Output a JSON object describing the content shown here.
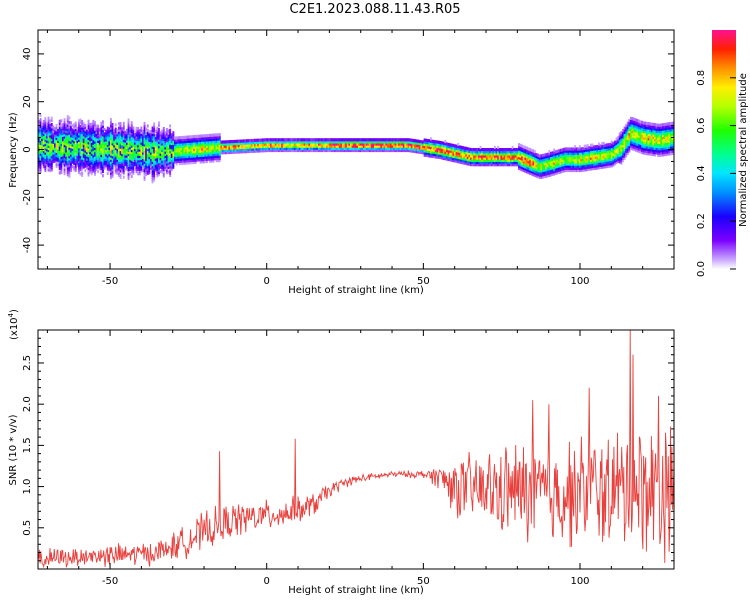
{
  "title": "C2E1.2023.088.11.43.R05",
  "chart_data": [
    {
      "type": "heatmap",
      "xlabel": "Height of straight line (km)",
      "ylabel": "Frequency (Hz)",
      "xlim": [
        -73,
        130
      ],
      "ylim": [
        -50,
        50
      ],
      "xticks": [
        -50,
        0,
        50,
        100
      ],
      "yticks": [
        -40,
        -20,
        0,
        20,
        40
      ],
      "colorbar": {
        "label": "Normalized spectral amplitude",
        "range": [
          0,
          1
        ],
        "ticks": [
          "0.0",
          "0.2",
          "0.4",
          "0.6",
          "0.8"
        ]
      },
      "ridge": {
        "x": [
          -73,
          -60,
          -45,
          -35,
          -25,
          -15,
          0,
          10,
          25,
          45,
          55,
          65,
          75,
          80,
          87,
          90,
          95,
          100,
          105,
          110,
          113,
          116,
          120,
          125,
          130
        ],
        "freq": [
          2,
          1,
          0,
          -1,
          0,
          1,
          2,
          2,
          2,
          2,
          0,
          -3,
          -3,
          -3,
          -7,
          -6,
          -4,
          -4,
          -3,
          -2,
          1,
          7,
          5,
          4,
          5
        ]
      }
    },
    {
      "type": "line",
      "xlabel": "Height of straight line (km)",
      "ylabel": "SNR (10 * v/v)",
      "scale_label": "(x10",
      "scale_exp": "4",
      "scale_close": ")",
      "xlim": [
        -73,
        130
      ],
      "ylim": [
        0,
        2.9
      ],
      "xticks": [
        -50,
        0,
        50,
        100
      ],
      "yticks": [
        0.5,
        1.0,
        1.5,
        2.0,
        2.5
      ],
      "series_color": "#e8403c",
      "profile": {
        "x": [
          -73,
          -60,
          -45,
          -35,
          -28,
          -20,
          -10,
          0,
          10,
          15,
          20,
          25,
          30,
          40,
          50,
          55,
          60,
          70,
          80,
          90,
          100,
          110,
          120,
          130
        ],
        "baseline": [
          0.12,
          0.15,
          0.17,
          0.2,
          0.3,
          0.45,
          0.6,
          0.65,
          0.7,
          0.78,
          0.95,
          1.05,
          1.1,
          1.15,
          1.15,
          1.12,
          1.0,
          0.95,
          0.95,
          0.9,
          0.95,
          0.95,
          1.0,
          0.95
        ],
        "amplitude": [
          0.1,
          0.1,
          0.12,
          0.12,
          0.15,
          0.2,
          0.18,
          0.15,
          0.15,
          0.12,
          0.08,
          0.05,
          0.04,
          0.03,
          0.04,
          0.12,
          0.3,
          0.4,
          0.5,
          0.55,
          0.55,
          0.6,
          0.65,
          0.7
        ]
      },
      "spikes": [
        {
          "x": -15,
          "y": 1.43
        },
        {
          "x": 9,
          "y": 1.58
        },
        {
          "x": 85,
          "y": 2.05
        },
        {
          "x": 90,
          "y": 2.0
        },
        {
          "x": 103,
          "y": 2.2
        },
        {
          "x": 116,
          "y": 2.9
        },
        {
          "x": 117,
          "y": 2.6
        },
        {
          "x": 125,
          "y": 2.1
        }
      ]
    }
  ]
}
